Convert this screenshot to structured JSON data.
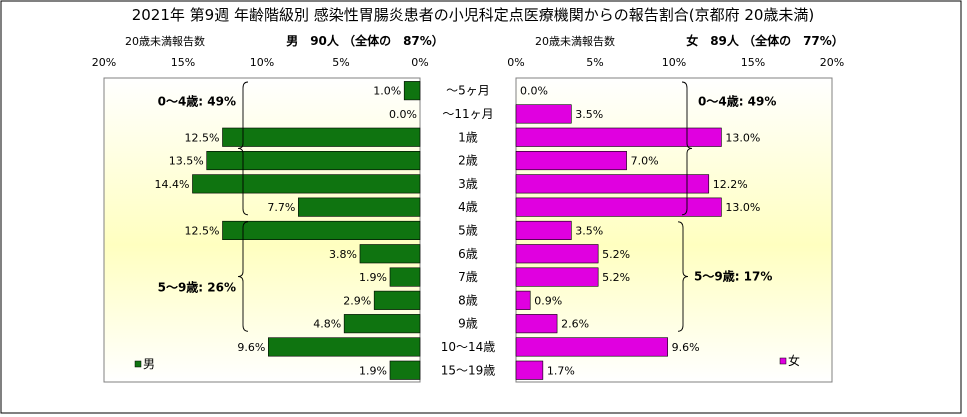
{
  "chart_data": {
    "type": "bar",
    "title": "2021年 第9週 年齢階級別 感染性胃腸炎患者の小児科定点医療機関からの報告割合(京都府 20歳未満)",
    "categories": [
      "～5ヶ月",
      "～11ヶ月",
      "1歳",
      "2歳",
      "3歳",
      "4歳",
      "5歳",
      "6歳",
      "7歳",
      "8歳",
      "9歳",
      "10～14歳",
      "15～19歳"
    ],
    "xlim": [
      0,
      20
    ],
    "ticks": [
      "20%",
      "15%",
      "10%",
      "5%",
      "0%"
    ],
    "ticks_right": [
      "0%",
      "5%",
      "10%",
      "15%",
      "20%"
    ],
    "panels": [
      {
        "side": "left",
        "name": "男",
        "header_left": "20歳未満報告数",
        "header_right": "男　90人 （全体の　87%）",
        "color": "#0f7410",
        "values": [
          1.0,
          0.0,
          12.5,
          13.5,
          14.4,
          7.7,
          12.5,
          3.8,
          1.9,
          2.9,
          4.8,
          9.6,
          1.9
        ],
        "labels": [
          "1.0%",
          "0.0%",
          "12.5%",
          "13.5%",
          "14.4%",
          "7.7%",
          "12.5%",
          "3.8%",
          "1.9%",
          "2.9%",
          "4.8%",
          "9.6%",
          "1.9%"
        ],
        "groups": [
          {
            "label": "0～4歳: 49%",
            "from": 0,
            "to": 5
          },
          {
            "label": "5～9歳: 26%",
            "from": 6,
            "to": 10
          }
        ]
      },
      {
        "side": "right",
        "name": "女",
        "header_left": "20歳未満報告数",
        "header_right": "女　89人 （全体の　77%）",
        "color": "#e000e0",
        "values": [
          0.0,
          3.5,
          13.0,
          7.0,
          12.2,
          13.0,
          3.5,
          5.2,
          5.2,
          0.9,
          2.6,
          9.6,
          1.7
        ],
        "labels": [
          "0.0%",
          "3.5%",
          "13.0%",
          "7.0%",
          "12.2%",
          "13.0%",
          "3.5%",
          "5.2%",
          "5.2%",
          "0.9%",
          "2.6%",
          "9.6%",
          "1.7%"
        ],
        "groups": [
          {
            "label": "0～4歳: 49%",
            "from": 0,
            "to": 5
          },
          {
            "label": "5～9歳: 17%",
            "from": 6,
            "to": 10
          }
        ]
      }
    ],
    "legend_position": "bottom"
  }
}
